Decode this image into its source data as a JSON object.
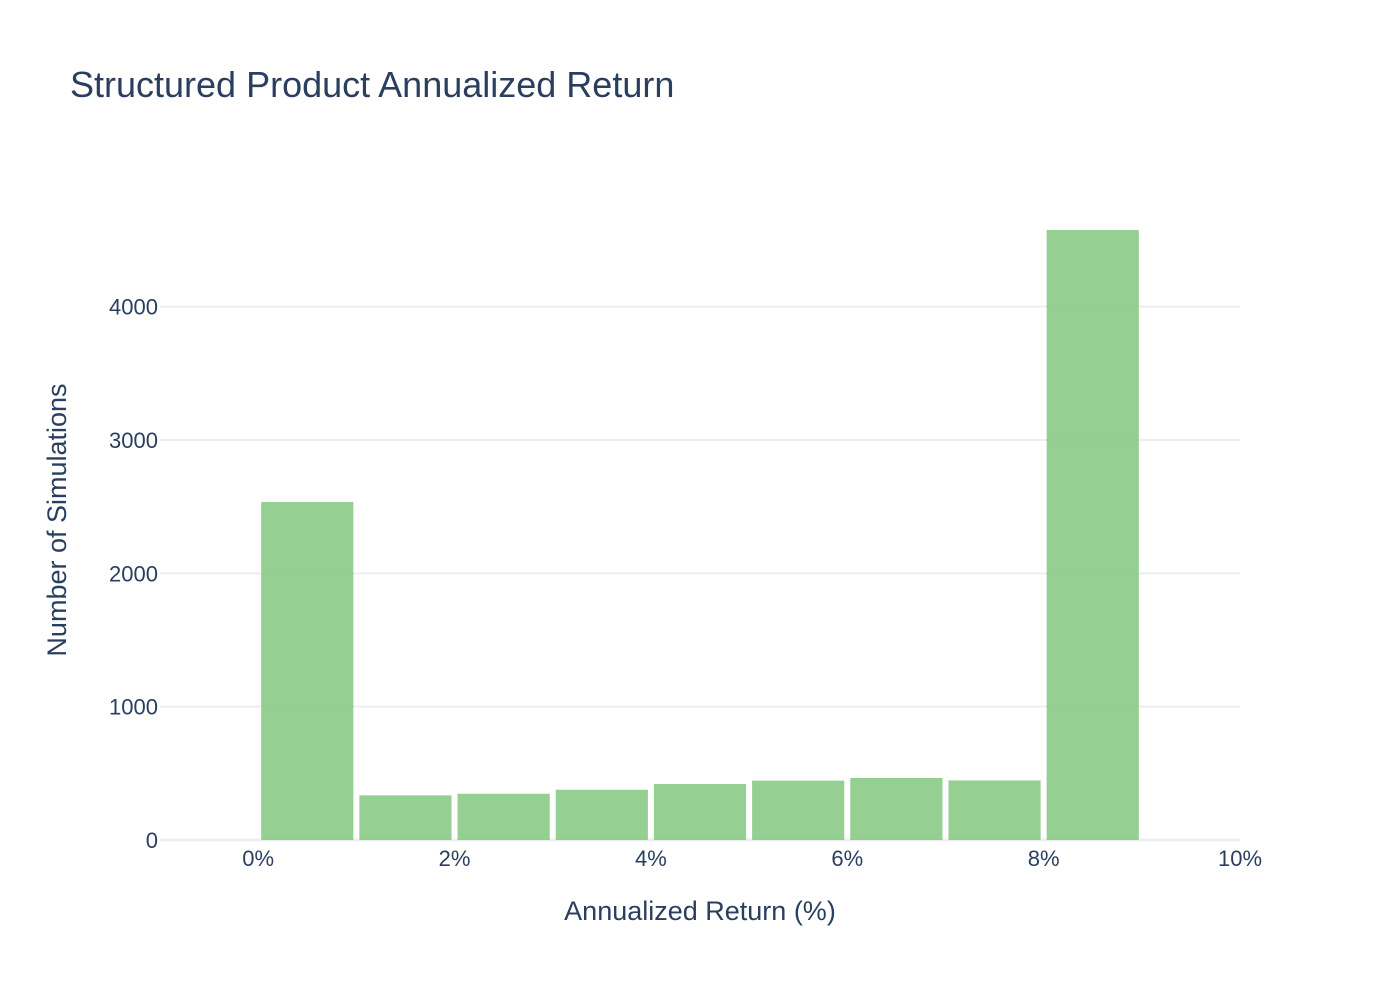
{
  "chart_data": {
    "type": "bar",
    "title": "Structured Product Annualized Return",
    "xlabel": "Annualized Return (%)",
    "ylabel": "Number of Simulations",
    "bin_width": 1,
    "bins": [
      {
        "start": 0,
        "end": 1,
        "value": 2535
      },
      {
        "start": 1,
        "end": 2,
        "value": 335
      },
      {
        "start": 2,
        "end": 3,
        "value": 347
      },
      {
        "start": 3,
        "end": 4,
        "value": 377
      },
      {
        "start": 4,
        "end": 5,
        "value": 420
      },
      {
        "start": 5,
        "end": 6,
        "value": 445
      },
      {
        "start": 6,
        "end": 7,
        "value": 465
      },
      {
        "start": 7,
        "end": 8,
        "value": 447
      },
      {
        "start": 8,
        "end": 9,
        "value": 4575
      }
    ],
    "xlim": [
      -1,
      10
    ],
    "ylim": [
      0,
      4800
    ],
    "x_ticks": [
      0,
      2,
      4,
      6,
      8,
      10
    ],
    "x_tick_labels": [
      "0%",
      "2%",
      "4%",
      "6%",
      "8%",
      "10%"
    ],
    "y_ticks": [
      0,
      1000,
      2000,
      3000,
      4000
    ],
    "y_tick_labels": [
      "0",
      "1000",
      "2000",
      "3000",
      "4000"
    ],
    "grid": true,
    "bar_color": "#7fc47a",
    "bar_opacity": 0.82,
    "grid_color": "#ebeef4",
    "text_color": "#2a3f5f"
  }
}
